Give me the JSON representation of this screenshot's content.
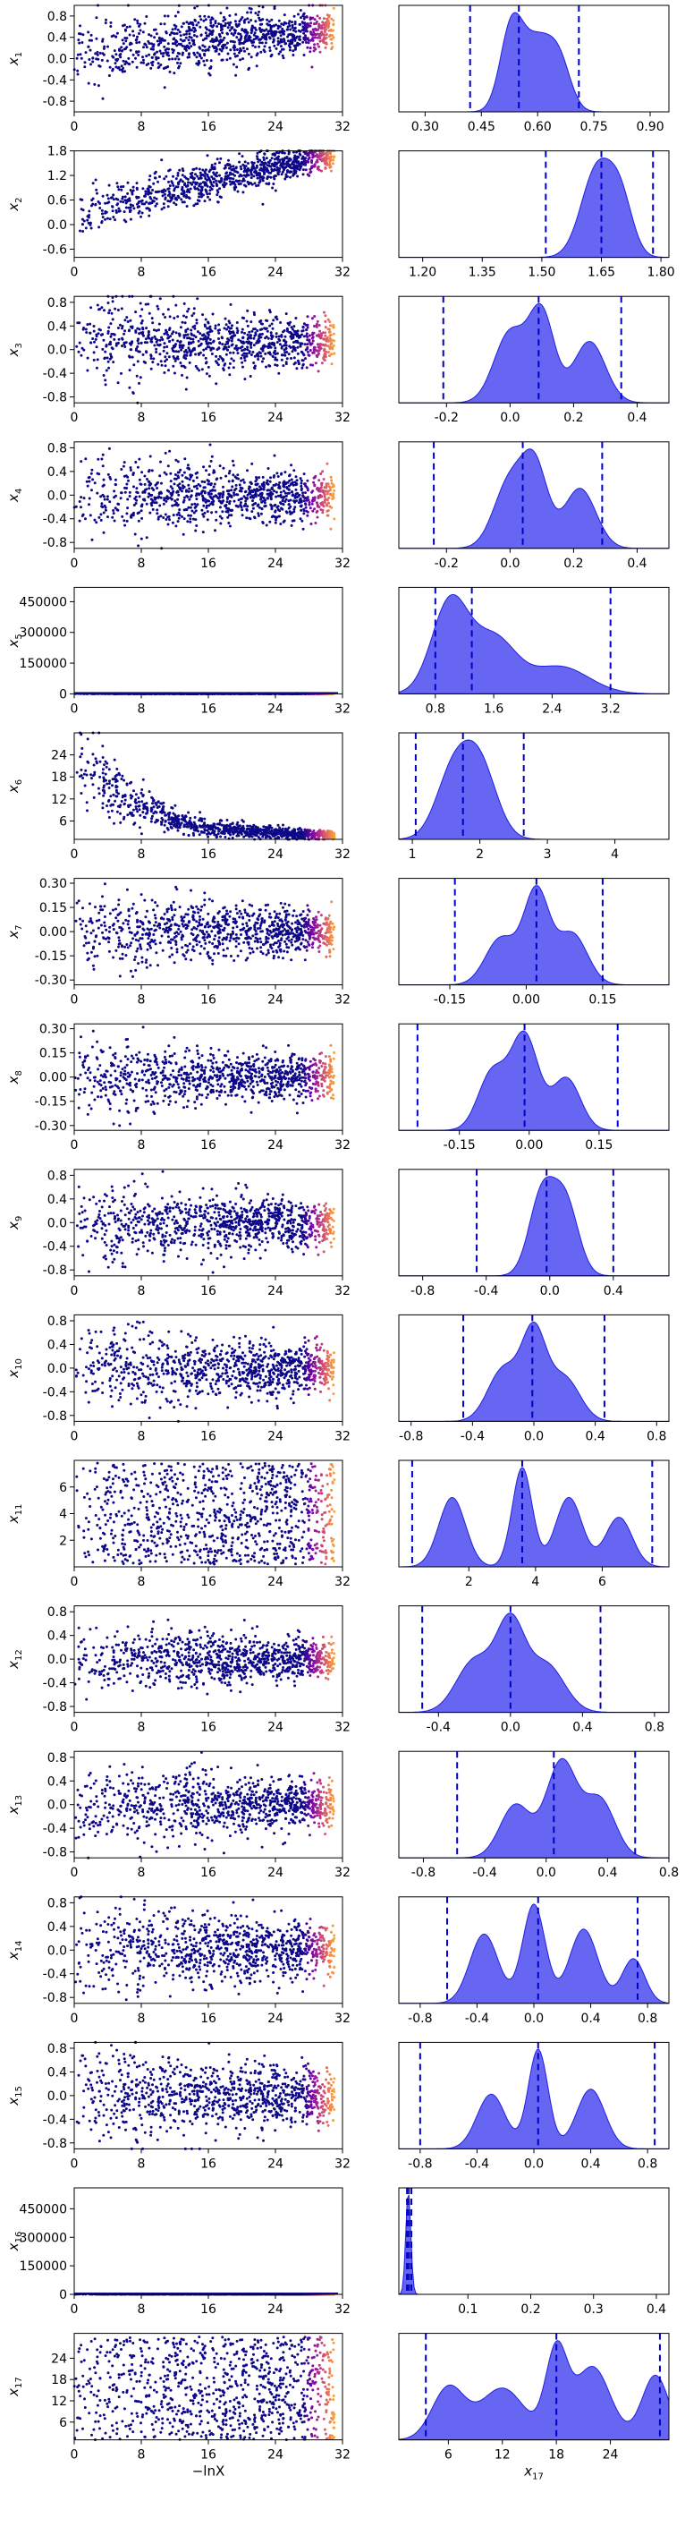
{
  "chart_data": [
    {
      "type": "scatter",
      "panel": "trace",
      "ylabel": "x_1",
      "xlim": [
        0,
        32
      ],
      "ylim": [
        -1.0,
        1.0
      ],
      "xticks": [
        "0",
        "8",
        "16",
        "24",
        "32"
      ],
      "yticks": [
        "-0.8",
        "-0.4",
        "0.0",
        "0.4",
        "0.8"
      ],
      "trend": {
        "start": 0.0,
        "end": 0.55
      },
      "spread": 0.3
    },
    {
      "type": "area",
      "panel": "kde",
      "xlabel": "",
      "xlim": [
        0.23,
        0.95
      ],
      "xticks": [
        "0.30",
        "0.45",
        "0.60",
        "0.75",
        "0.90"
      ],
      "quantiles": [
        0.42,
        0.55,
        0.71
      ],
      "peaks": [
        {
          "x": 0.53,
          "h": 1.0,
          "w": 0.03
        },
        {
          "x": 0.6,
          "h": 0.85,
          "w": 0.04
        },
        {
          "x": 0.66,
          "h": 0.5,
          "w": 0.03
        }
      ]
    },
    {
      "type": "scatter",
      "panel": "trace",
      "ylabel": "x_2",
      "xlim": [
        0,
        32
      ],
      "ylim": [
        -0.8,
        1.8
      ],
      "xticks": [
        "0",
        "8",
        "16",
        "24",
        "32"
      ],
      "yticks": [
        "-0.6",
        "0.0",
        "0.6",
        "1.2",
        "1.8"
      ],
      "trend": {
        "start": 0.0,
        "end": 1.72
      },
      "spread": 0.25
    },
    {
      "type": "area",
      "panel": "kde",
      "xlabel": "",
      "xlim": [
        1.14,
        1.82
      ],
      "xticks": [
        "1.20",
        "1.35",
        "1.50",
        "1.65",
        "1.80"
      ],
      "quantiles": [
        1.51,
        1.65,
        1.78
      ],
      "peaks": [
        {
          "x": 1.64,
          "h": 1.0,
          "w": 0.04
        },
        {
          "x": 1.7,
          "h": 0.55,
          "w": 0.03
        }
      ]
    },
    {
      "type": "scatter",
      "panel": "trace",
      "ylabel": "x_3",
      "xlim": [
        0,
        32
      ],
      "ylim": [
        -0.9,
        0.9
      ],
      "xticks": [
        "0",
        "8",
        "16",
        "24",
        "32"
      ],
      "yticks": [
        "-0.8",
        "-0.4",
        "0.0",
        "0.4",
        "0.8"
      ],
      "trend": {
        "start": 0.2,
        "end": 0.1
      },
      "spread": 0.3
    },
    {
      "type": "area",
      "panel": "kde",
      "xlabel": "",
      "xlim": [
        -0.35,
        0.5
      ],
      "xticks": [
        "-0.2",
        "0.0",
        "0.2",
        "0.4"
      ],
      "quantiles": [
        -0.21,
        0.09,
        0.35
      ],
      "peaks": [
        {
          "x": 0.0,
          "h": 0.8,
          "w": 0.05
        },
        {
          "x": 0.1,
          "h": 1.0,
          "w": 0.04
        },
        {
          "x": 0.25,
          "h": 0.7,
          "w": 0.05
        }
      ]
    },
    {
      "type": "scatter",
      "panel": "trace",
      "ylabel": "x_4",
      "xlim": [
        0,
        32
      ],
      "ylim": [
        -0.9,
        0.9
      ],
      "xticks": [
        "0",
        "8",
        "16",
        "24",
        "32"
      ],
      "yticks": [
        "-0.8",
        "-0.4",
        "0.0",
        "0.4",
        "0.8"
      ],
      "trend": {
        "start": 0.0,
        "end": 0.0
      },
      "spread": 0.3
    },
    {
      "type": "area",
      "panel": "kde",
      "xlabel": "",
      "xlim": [
        -0.35,
        0.5
      ],
      "xticks": [
        "-0.2",
        "0.0",
        "0.2",
        "0.4"
      ],
      "quantiles": [
        -0.24,
        0.04,
        0.29
      ],
      "peaks": [
        {
          "x": 0.0,
          "h": 0.9,
          "w": 0.05
        },
        {
          "x": 0.08,
          "h": 1.0,
          "w": 0.04
        },
        {
          "x": 0.22,
          "h": 0.8,
          "w": 0.05
        }
      ]
    },
    {
      "type": "scatter",
      "panel": "trace",
      "ylabel": "x_5",
      "xlim": [
        0,
        32
      ],
      "ylim": [
        0,
        520000
      ],
      "xticks": [
        "0",
        "8",
        "16",
        "24",
        "32"
      ],
      "yticks": [
        "0",
        "150000",
        "300000",
        "450000"
      ],
      "flat": true
    },
    {
      "type": "area",
      "panel": "kde",
      "xlabel": "",
      "xlim": [
        0.3,
        4.0
      ],
      "xticks": [
        "0.8",
        "1.6",
        "2.4",
        "3.2"
      ],
      "quantiles": [
        0.8,
        1.3,
        3.2
      ],
      "peaks": [
        {
          "x": 1.0,
          "h": 1.0,
          "w": 0.25
        },
        {
          "x": 1.6,
          "h": 0.6,
          "w": 0.3
        },
        {
          "x": 2.5,
          "h": 0.3,
          "w": 0.4
        }
      ]
    },
    {
      "type": "scatter",
      "panel": "trace",
      "ylabel": "x_6",
      "xlim": [
        0,
        32
      ],
      "ylim": [
        1,
        30
      ],
      "xticks": [
        "0",
        "8",
        "16",
        "24",
        "32"
      ],
      "yticks": [
        "6",
        "12",
        "18",
        "24"
      ],
      "decay": true
    },
    {
      "type": "area",
      "panel": "kde",
      "xlabel": "",
      "xlim": [
        0.8,
        4.8
      ],
      "xticks": [
        "1",
        "2",
        "3",
        "4"
      ],
      "quantiles": [
        1.05,
        1.75,
        2.65
      ],
      "peaks": [
        {
          "x": 1.6,
          "h": 0.9,
          "w": 0.25
        },
        {
          "x": 2.0,
          "h": 1.0,
          "w": 0.25
        }
      ]
    },
    {
      "type": "scatter",
      "panel": "trace",
      "ylabel": "x_7",
      "xlim": [
        0,
        32
      ],
      "ylim": [
        -0.33,
        0.33
      ],
      "xticks": [
        "0",
        "8",
        "16",
        "24",
        "32"
      ],
      "yticks": [
        "-0.30",
        "-0.15",
        "0.00",
        "0.15",
        "0.30"
      ],
      "trend": {
        "start": 0.0,
        "end": 0.0
      },
      "spread": 0.1
    },
    {
      "type": "area",
      "panel": "kde",
      "xlabel": "",
      "xlim": [
        -0.25,
        0.28
      ],
      "xticks": [
        "-0.15",
        "0.00",
        "0.15"
      ],
      "quantiles": [
        -0.14,
        0.02,
        0.15
      ],
      "peaks": [
        {
          "x": 0.02,
          "h": 1.0,
          "w": 0.025
        },
        {
          "x": -0.05,
          "h": 0.5,
          "w": 0.03
        },
        {
          "x": 0.09,
          "h": 0.55,
          "w": 0.03
        }
      ]
    },
    {
      "type": "scatter",
      "panel": "trace",
      "ylabel": "x_8",
      "xlim": [
        0,
        32
      ],
      "ylim": [
        -0.33,
        0.33
      ],
      "xticks": [
        "0",
        "8",
        "16",
        "24",
        "32"
      ],
      "yticks": [
        "-0.30",
        "-0.15",
        "0.00",
        "0.15",
        "0.30"
      ],
      "trend": {
        "start": 0.0,
        "end": 0.0
      },
      "spread": 0.1
    },
    {
      "type": "area",
      "panel": "kde",
      "xlabel": "",
      "xlim": [
        -0.28,
        0.3
      ],
      "xticks": [
        "-0.15",
        "0.00",
        "0.15"
      ],
      "quantiles": [
        -0.24,
        -0.01,
        0.19
      ],
      "peaks": [
        {
          "x": -0.01,
          "h": 1.0,
          "w": 0.03
        },
        {
          "x": -0.08,
          "h": 0.6,
          "w": 0.03
        },
        {
          "x": 0.08,
          "h": 0.55,
          "w": 0.03
        }
      ]
    },
    {
      "type": "scatter",
      "panel": "trace",
      "ylabel": "x_9",
      "xlim": [
        0,
        32
      ],
      "ylim": [
        -0.9,
        0.9
      ],
      "xticks": [
        "0",
        "8",
        "16",
        "24",
        "32"
      ],
      "yticks": [
        "-0.8",
        "-0.4",
        "0.0",
        "0.4",
        "0.8"
      ],
      "trend": {
        "start": 0.0,
        "end": 0.0
      },
      "spread": 0.3
    },
    {
      "type": "area",
      "panel": "kde",
      "xlabel": "",
      "xlim": [
        -0.95,
        0.75
      ],
      "xticks": [
        "-0.8",
        "-0.4",
        "0.0",
        "0.4"
      ],
      "quantiles": [
        -0.46,
        -0.02,
        0.4
      ],
      "peaks": [
        {
          "x": -0.05,
          "h": 1.0,
          "w": 0.08
        },
        {
          "x": 0.1,
          "h": 0.9,
          "w": 0.08
        }
      ]
    },
    {
      "type": "scatter",
      "panel": "trace",
      "ylabel": "x_10",
      "xlim": [
        0,
        32
      ],
      "ylim": [
        -0.9,
        0.9
      ],
      "xticks": [
        "0",
        "8",
        "16",
        "24",
        "32"
      ],
      "yticks": [
        "-0.8",
        "-0.4",
        "0.0",
        "0.4",
        "0.8"
      ],
      "trend": {
        "start": 0.0,
        "end": 0.0
      },
      "spread": 0.3
    },
    {
      "type": "area",
      "panel": "kde",
      "xlabel": "",
      "xlim": [
        -0.88,
        0.88
      ],
      "xticks": [
        "-0.8",
        "-0.4",
        "0.0",
        "0.4",
        "0.8"
      ],
      "quantiles": [
        -0.46,
        -0.01,
        0.46
      ],
      "peaks": [
        {
          "x": 0.0,
          "h": 1.0,
          "w": 0.08
        },
        {
          "x": -0.2,
          "h": 0.6,
          "w": 0.1
        },
        {
          "x": 0.2,
          "h": 0.5,
          "w": 0.1
        }
      ]
    },
    {
      "type": "scatter",
      "panel": "trace",
      "ylabel": "x_11",
      "xlim": [
        0,
        32
      ],
      "ylim": [
        0,
        8
      ],
      "xticks": [
        "0",
        "8",
        "16",
        "24",
        "32"
      ],
      "yticks": [
        "2",
        "4",
        "6"
      ],
      "uniform": [
        0.2,
        7.8
      ]
    },
    {
      "type": "area",
      "panel": "kde",
      "xlabel": "",
      "xlim": [
        -0.1,
        8.0
      ],
      "xticks": [
        "2",
        "4",
        "6"
      ],
      "quantiles": [
        0.3,
        3.6,
        7.5
      ],
      "peaks": [
        {
          "x": 3.6,
          "h": 1.0,
          "w": 0.3
        },
        {
          "x": 1.5,
          "h": 0.7,
          "w": 0.4
        },
        {
          "x": 5.0,
          "h": 0.7,
          "w": 0.4
        },
        {
          "x": 6.5,
          "h": 0.5,
          "w": 0.4
        }
      ]
    },
    {
      "type": "scatter",
      "panel": "trace",
      "ylabel": "x_12",
      "xlim": [
        0,
        32
      ],
      "ylim": [
        -0.9,
        0.9
      ],
      "xticks": [
        "0",
        "8",
        "16",
        "24",
        "32"
      ],
      "yticks": [
        "-0.8",
        "-0.4",
        "0.0",
        "0.4",
        "0.8"
      ],
      "trend": {
        "start": 0.0,
        "end": 0.0
      },
      "spread": 0.25
    },
    {
      "type": "area",
      "panel": "kde",
      "xlabel": "",
      "xlim": [
        -0.62,
        0.88
      ],
      "xticks": [
        "-0.4",
        "0.0",
        "0.4",
        "0.8"
      ],
      "quantiles": [
        -0.49,
        0.0,
        0.5
      ],
      "peaks": [
        {
          "x": 0.0,
          "h": 1.0,
          "w": 0.08
        },
        {
          "x": -0.2,
          "h": 0.6,
          "w": 0.1
        },
        {
          "x": 0.2,
          "h": 0.55,
          "w": 0.1
        }
      ]
    },
    {
      "type": "scatter",
      "panel": "trace",
      "ylabel": "x_13",
      "xlim": [
        0,
        32
      ],
      "ylim": [
        -0.9,
        0.9
      ],
      "xticks": [
        "0",
        "8",
        "16",
        "24",
        "32"
      ],
      "yticks": [
        "-0.8",
        "-0.4",
        "0.0",
        "0.4",
        "0.8"
      ],
      "trend": {
        "start": 0.0,
        "end": 0.0
      },
      "spread": 0.3
    },
    {
      "type": "area",
      "panel": "kde",
      "xlabel": "",
      "xlim": [
        -0.96,
        0.8
      ],
      "xticks": [
        "-0.8",
        "-0.4",
        "0.0",
        "0.4",
        "0.8"
      ],
      "quantiles": [
        -0.58,
        0.05,
        0.58
      ],
      "peaks": [
        {
          "x": 0.1,
          "h": 1.0,
          "w": 0.1
        },
        {
          "x": -0.2,
          "h": 0.55,
          "w": 0.1
        },
        {
          "x": 0.35,
          "h": 0.6,
          "w": 0.1
        }
      ]
    },
    {
      "type": "scatter",
      "panel": "trace",
      "ylabel": "x_14",
      "xlim": [
        0,
        32
      ],
      "ylim": [
        -0.9,
        0.9
      ],
      "xticks": [
        "0",
        "8",
        "16",
        "24",
        "32"
      ],
      "yticks": [
        "-0.8",
        "-0.4",
        "0.0",
        "0.4",
        "0.8"
      ],
      "trend": {
        "start": 0.0,
        "end": 0.0
      },
      "spread": 0.35
    },
    {
      "type": "area",
      "panel": "kde",
      "xlabel": "",
      "xlim": [
        -0.95,
        0.95
      ],
      "xticks": [
        "-0.8",
        "-0.4",
        "0.0",
        "0.4",
        "0.8"
      ],
      "quantiles": [
        -0.61,
        0.03,
        0.73
      ],
      "peaks": [
        {
          "x": 0.0,
          "h": 1.0,
          "w": 0.08
        },
        {
          "x": -0.35,
          "h": 0.7,
          "w": 0.1
        },
        {
          "x": 0.35,
          "h": 0.75,
          "w": 0.1
        },
        {
          "x": 0.7,
          "h": 0.45,
          "w": 0.08
        }
      ]
    },
    {
      "type": "scatter",
      "panel": "trace",
      "ylabel": "x_15",
      "xlim": [
        0,
        32
      ],
      "ylim": [
        -0.9,
        0.9
      ],
      "xticks": [
        "0",
        "8",
        "16",
        "24",
        "32"
      ],
      "yticks": [
        "-0.8",
        "-0.4",
        "0.0",
        "0.4",
        "0.8"
      ],
      "trend": {
        "start": 0.0,
        "end": 0.0
      },
      "spread": 0.35
    },
    {
      "type": "area",
      "panel": "kde",
      "xlabel": "",
      "xlim": [
        -0.95,
        0.95
      ],
      "xticks": [
        "-0.8",
        "-0.4",
        "0.0",
        "0.4",
        "0.8"
      ],
      "quantiles": [
        -0.8,
        0.03,
        0.85
      ],
      "peaks": [
        {
          "x": 0.03,
          "h": 1.0,
          "w": 0.07
        },
        {
          "x": -0.3,
          "h": 0.55,
          "w": 0.1
        },
        {
          "x": 0.4,
          "h": 0.6,
          "w": 0.1
        }
      ]
    },
    {
      "type": "scatter",
      "panel": "trace",
      "ylabel": "x_16",
      "xlim": [
        0,
        32
      ],
      "ylim": [
        0,
        560000
      ],
      "xticks": [
        "0",
        "8",
        "16",
        "24",
        "32"
      ],
      "yticks": [
        "0",
        "150000",
        "300000",
        "450000"
      ],
      "flat": true
    },
    {
      "type": "area",
      "panel": "kde",
      "xlabel": "",
      "xlim": [
        -0.01,
        0.42
      ],
      "xticks": [
        "0.1",
        "0.2",
        "0.3",
        "0.4"
      ],
      "quantiles": [
        0.003,
        0.006,
        0.01
      ],
      "peaks": [
        {
          "x": 0.005,
          "h": 1.0,
          "w": 0.004
        }
      ]
    },
    {
      "type": "scatter",
      "panel": "trace",
      "ylabel": "x_17",
      "xlim": [
        0,
        32
      ],
      "ylim": [
        1,
        31
      ],
      "xticks": [
        "0",
        "8",
        "16",
        "24",
        "32"
      ],
      "yticks": [
        "6",
        "12",
        "18",
        "24"
      ],
      "uniform": [
        1,
        30
      ],
      "xlabel": "−lnX"
    },
    {
      "type": "area",
      "panel": "kde",
      "xlabel": "x_17",
      "xlim": [
        0.5,
        30.5
      ],
      "xticks": [
        "6",
        "12",
        "18",
        "24"
      ],
      "quantiles": [
        3.5,
        18,
        29.5
      ],
      "peaks": [
        {
          "x": 18,
          "h": 1.0,
          "w": 1.2
        },
        {
          "x": 6,
          "h": 0.6,
          "w": 1.8
        },
        {
          "x": 22,
          "h": 0.85,
          "w": 2.0
        },
        {
          "x": 29,
          "h": 0.75,
          "w": 1.5
        },
        {
          "x": 12,
          "h": 0.6,
          "w": 2.5
        }
      ]
    }
  ]
}
